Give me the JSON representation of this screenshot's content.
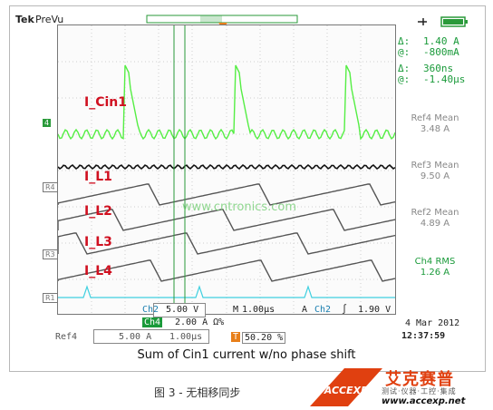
{
  "header": {
    "brand": "Tek",
    "mode": "PreVu"
  },
  "readouts": {
    "delta_label": "Δ:",
    "at_label": "@:",
    "current_delta": "1.40 A",
    "current_at": "-800mA",
    "time_delta": "360ns",
    "time_at": "-1.40µs"
  },
  "measurements": [
    {
      "label": "Ref4 Mean",
      "value": "3.48 A"
    },
    {
      "label": "Ref3 Mean",
      "value": "9.50 A"
    },
    {
      "label": "Ref2 Mean",
      "value": "4.89 A"
    },
    {
      "label": "Ch4 RMS",
      "value": "1.26 A"
    }
  ],
  "traces": {
    "labels": [
      "I_Cin1",
      "I_L1",
      "I_L2",
      "I_L3",
      "I_L4"
    ],
    "markers": [
      "4",
      "R4",
      "R3",
      "R1"
    ],
    "trigger": "T",
    "watermark": "www.cntronics.com"
  },
  "bottom": {
    "ch2_label": "Ch2",
    "ch2_scale": "5.00 V",
    "ch4_label": "Ch4",
    "ch4_scale": "2.00 A Ω%",
    "m_label": "M",
    "timebase": "1.00µs",
    "trig_src_a": "A",
    "trig_ch": "Ch2",
    "trig_slope": "∫",
    "trig_level": "1.90 V",
    "ref4_label": "Ref4",
    "ref4_scale": "5.00 A",
    "ref4_time": "1.00µs",
    "trig_pos_label": "T",
    "trig_pos": "50.20 %",
    "date": "4 Mar 2012",
    "time": "12:37:59"
  },
  "caption": "Sum of Cin1 current w/no phase shift",
  "figure_caption": "图 3 - 无相移同步",
  "logo": {
    "name": "艾克赛普",
    "tagline": "测试·仪器·工控·集成",
    "url": "www.accexp.net",
    "mark": "ACCEXP"
  },
  "colors": {
    "ch4": "#55ee44",
    "ref": "#555555",
    "label": "#d01020",
    "readout": "#1a9a3a",
    "trig": "#e87f1a",
    "ch2": "#40d0e0"
  }
}
